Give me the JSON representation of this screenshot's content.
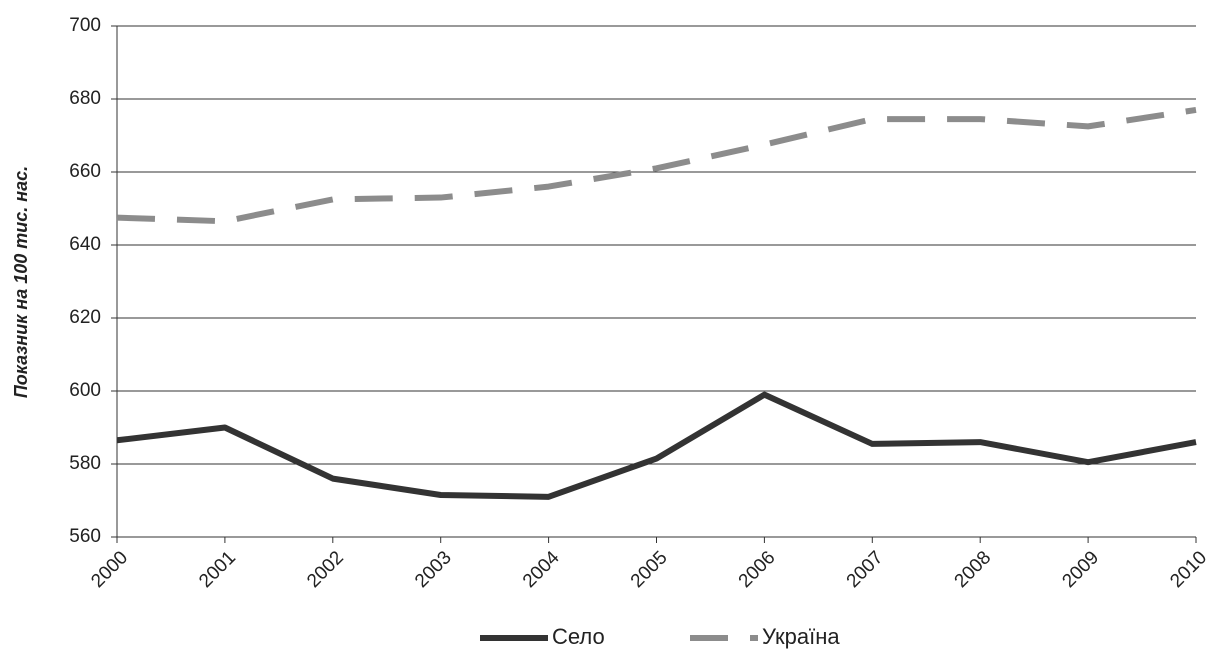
{
  "chart_data": {
    "type": "line",
    "y_label": "Показник на 100 тис. нас.",
    "categories": [
      "2000",
      "2001",
      "2002",
      "2003",
      "2004",
      "2005",
      "2006",
      "2007",
      "2008",
      "2009",
      "2010"
    ],
    "series": [
      {
        "name": "Село",
        "color": "#333333",
        "dash": false,
        "values": [
          586.5,
          590,
          576,
          571.5,
          571,
          581.5,
          599,
          585.5,
          586,
          580.5,
          586
        ]
      },
      {
        "name": "Україна",
        "color": "#8c8c8c",
        "dash": true,
        "values": [
          647.5,
          646.5,
          652.5,
          653,
          656,
          661,
          667.5,
          674.5,
          674.5,
          672.5,
          677
        ]
      }
    ],
    "ylim": [
      560,
      700
    ],
    "yticks": [
      560,
      580,
      600,
      620,
      640,
      660,
      680,
      700
    ],
    "grid": true,
    "legend": "bottom"
  }
}
